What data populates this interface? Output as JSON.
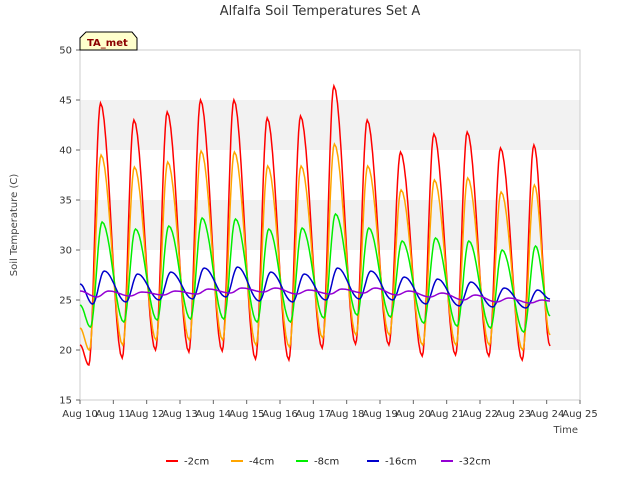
{
  "chart_data": {
    "type": "line",
    "title": "Alfalfa Soil Temperatures Set A",
    "xlabel": "Time",
    "ylabel": "Soil Temperature (C)",
    "annotation": "TA_met",
    "xlim": [
      10,
      25
    ],
    "ylim": [
      15,
      50
    ],
    "x_tick_values": [
      10,
      11,
      12,
      13,
      14,
      15,
      16,
      17,
      18,
      19,
      20,
      21,
      22,
      23,
      24,
      25
    ],
    "x_tick_labels": [
      "Aug 10",
      "Aug 11",
      "Aug 12",
      "Aug 13",
      "Aug 14",
      "Aug 15",
      "Aug 16",
      "Aug 17",
      "Aug 18",
      "Aug 19",
      "Aug 20",
      "Aug 21",
      "Aug 22",
      "Aug 23",
      "Aug 24",
      "Aug 25"
    ],
    "y_ticks": [
      15,
      20,
      25,
      30,
      35,
      40,
      45,
      50
    ],
    "grid": "horizontal bands",
    "legend_position": "bottom",
    "days": [
      11,
      12,
      13,
      14,
      15,
      16,
      17,
      18,
      19,
      20,
      21,
      22,
      23,
      24
    ],
    "series": [
      {
        "name": "-2cm",
        "color": "#ff0000",
        "depth": 2,
        "max": [
          44.7,
          43.0,
          43.8,
          45.0,
          45.0,
          43.2,
          43.4,
          46.4,
          43.0,
          39.8,
          41.6,
          41.8,
          40.2,
          40.5
        ],
        "min": [
          18.5,
          19.2,
          20.0,
          19.8,
          19.9,
          19.1,
          19.0,
          20.2,
          20.6,
          20.5,
          19.4,
          19.5,
          19.4,
          19.0
        ],
        "start": 20.5,
        "end": 20.4
      },
      {
        "name": "-4cm",
        "color": "#ffa500",
        "depth": 4,
        "max": [
          39.5,
          38.3,
          38.8,
          39.9,
          39.8,
          38.4,
          38.4,
          40.6,
          38.4,
          36.0,
          37.0,
          37.2,
          35.8,
          36.5
        ],
        "min": [
          20.0,
          20.5,
          21.0,
          21.0,
          21.0,
          20.5,
          20.3,
          21.2,
          21.5,
          21.5,
          20.5,
          20.5,
          20.5,
          20.0
        ],
        "start": 22.2,
        "end": 21.5
      },
      {
        "name": "-8cm",
        "color": "#00ee00",
        "depth": 8,
        "max": [
          32.8,
          32.1,
          32.4,
          33.2,
          33.1,
          32.1,
          32.2,
          33.6,
          32.2,
          30.9,
          31.2,
          30.9,
          30.0,
          30.4
        ],
        "min": [
          22.3,
          22.8,
          23.0,
          23.1,
          23.1,
          22.8,
          22.8,
          23.2,
          23.5,
          23.3,
          22.7,
          22.4,
          22.2,
          21.8
        ],
        "start": 24.5,
        "end": 23.4
      },
      {
        "name": "-16cm",
        "color": "#0000cc",
        "depth": 16,
        "max": [
          27.9,
          27.6,
          27.8,
          28.2,
          28.3,
          27.8,
          27.6,
          28.2,
          27.9,
          27.3,
          27.1,
          26.8,
          26.2,
          26.0
        ],
        "min": [
          24.6,
          24.8,
          25.0,
          25.1,
          25.3,
          24.9,
          24.8,
          25.0,
          25.1,
          25.0,
          24.6,
          24.4,
          24.3,
          24.2
        ],
        "start": 26.6,
        "end": 25.1
      },
      {
        "name": "-32cm",
        "color": "#9400d3",
        "depth": 32,
        "max": [
          25.9,
          25.8,
          25.9,
          26.1,
          26.2,
          26.2,
          26.0,
          26.1,
          26.2,
          25.9,
          25.7,
          25.5,
          25.2,
          25.0
        ],
        "min": [
          25.3,
          25.4,
          25.5,
          25.6,
          25.7,
          25.8,
          25.6,
          25.6,
          25.7,
          25.5,
          25.3,
          25.0,
          24.8,
          24.7
        ],
        "start": 25.9,
        "end": 24.9
      }
    ]
  }
}
